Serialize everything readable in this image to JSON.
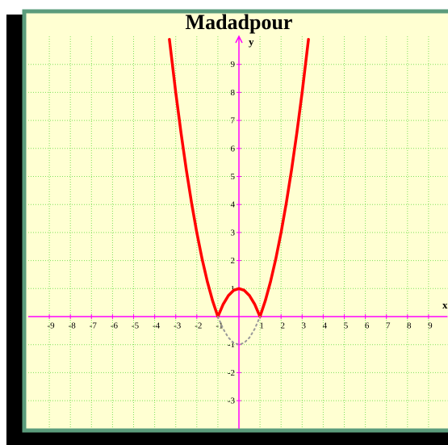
{
  "chart_data": {
    "type": "line",
    "title": "Madadpour",
    "x_label": "x",
    "y_label": "y",
    "xlim": [
      -10,
      9.9
    ],
    "ylim": [
      -4,
      10
    ],
    "xticks": [
      -9,
      -8,
      -7,
      -6,
      -5,
      -4,
      -3,
      -2,
      -1,
      1,
      2,
      3,
      4,
      5,
      6,
      7,
      8,
      9
    ],
    "yticks": [
      -3,
      -2,
      -1,
      1,
      2,
      3,
      4,
      5,
      6,
      7,
      8,
      9
    ],
    "grid": true,
    "grid_color": "#7ee05a",
    "axis_color": "#ff00ff",
    "series": [
      {
        "color": "#ff0000",
        "line_style": "solid",
        "x": [
          -3.3,
          -3,
          -2.75,
          -2.5,
          -2.25,
          -2,
          -1.75,
          -1.5,
          -1.25,
          -1,
          -0.75,
          -0.5,
          -0.25,
          0,
          0.25,
          0.5,
          0.75,
          1,
          1.25,
          1.5,
          1.75,
          2,
          2.25,
          2.5,
          2.75,
          3,
          3.3
        ],
        "values": [
          9.89,
          8,
          6.5625,
          5.25,
          4.0625,
          3,
          2.0625,
          1.25,
          0.5625,
          0,
          0.4375,
          0.75,
          0.9375,
          1,
          0.9375,
          0.75,
          0.4375,
          0,
          0.5625,
          1.25,
          2.0625,
          3,
          4.0625,
          5.25,
          6.5625,
          8,
          9.89
        ]
      },
      {
        "color": "#999999",
        "line_style": "dotted",
        "x": [
          -1,
          -0.75,
          -0.5,
          -0.25,
          0,
          0.25,
          0.5,
          0.75,
          1
        ],
        "values": [
          0,
          -0.4375,
          -0.75,
          -0.9375,
          -1,
          -0.9375,
          -0.75,
          -0.4375,
          0
        ]
      }
    ]
  }
}
